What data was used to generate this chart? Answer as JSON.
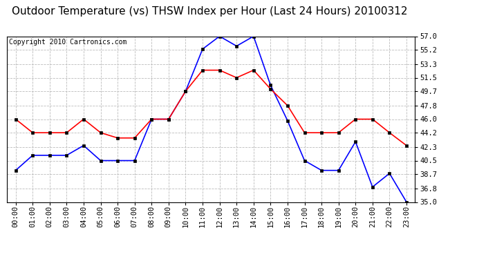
{
  "title": "Outdoor Temperature (vs) THSW Index per Hour (Last 24 Hours) 20100312",
  "copyright": "Copyright 2010 Cartronics.com",
  "hours": [
    "00:00",
    "01:00",
    "02:00",
    "03:00",
    "04:00",
    "05:00",
    "06:00",
    "07:00",
    "08:00",
    "09:00",
    "10:00",
    "11:00",
    "12:00",
    "13:00",
    "14:00",
    "15:00",
    "16:00",
    "17:00",
    "18:00",
    "19:00",
    "20:00",
    "21:00",
    "22:00",
    "23:00"
  ],
  "blue_data": [
    39.2,
    41.2,
    41.2,
    41.2,
    42.5,
    40.5,
    40.5,
    40.5,
    46.0,
    46.0,
    49.7,
    55.3,
    57.0,
    55.7,
    57.0,
    50.5,
    45.8,
    40.5,
    39.2,
    39.2,
    43.0,
    37.0,
    38.8,
    35.0
  ],
  "red_data": [
    46.0,
    44.2,
    44.2,
    44.2,
    46.0,
    44.2,
    43.5,
    43.5,
    46.0,
    46.0,
    49.7,
    52.5,
    52.5,
    51.5,
    52.5,
    50.0,
    47.8,
    44.2,
    44.2,
    44.2,
    46.0,
    46.0,
    44.2,
    42.5
  ],
  "blue_color": "#0000ff",
  "red_color": "#ff0000",
  "marker_color": "#000000",
  "background_color": "#ffffff",
  "grid_color": "#bbbbbb",
  "yticks": [
    35.0,
    36.8,
    38.7,
    40.5,
    42.3,
    44.2,
    46.0,
    47.8,
    49.7,
    51.5,
    53.3,
    55.2,
    57.0
  ],
  "ymin": 35.0,
  "ymax": 57.0,
  "title_fontsize": 11,
  "copyright_fontsize": 7,
  "tick_fontsize": 7.5
}
